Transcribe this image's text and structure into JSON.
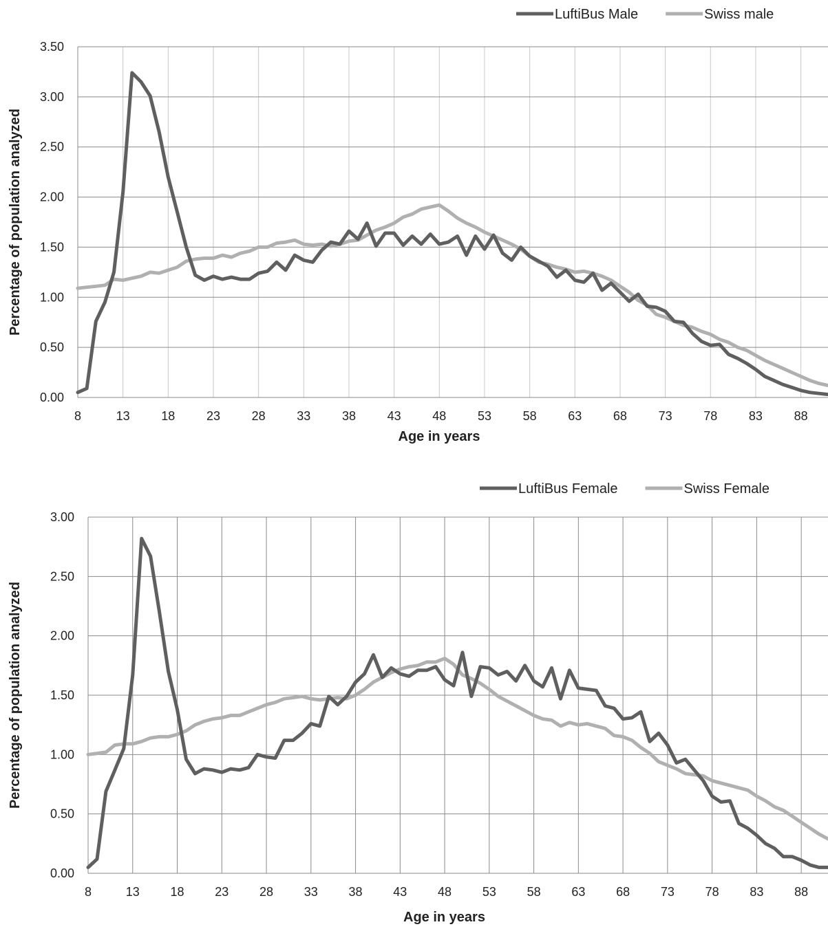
{
  "chart_data": [
    {
      "type": "line",
      "title": "",
      "xlabel": "Age in years",
      "ylabel": "Percentage of population analyzed",
      "xlim": [
        8,
        91
      ],
      "ylim": [
        0,
        3.5
      ],
      "x_ticks": [
        8,
        13,
        18,
        23,
        28,
        33,
        38,
        43,
        48,
        53,
        58,
        63,
        68,
        73,
        78,
        83,
        88
      ],
      "y_ticks": [
        "0.00",
        "0.50",
        "1.00",
        "1.50",
        "2.00",
        "2.50",
        "3.00",
        "3.50"
      ],
      "grid": true,
      "legend_position": "top-right",
      "x": [
        8,
        9,
        10,
        11,
        12,
        13,
        14,
        15,
        16,
        17,
        18,
        19,
        20,
        21,
        22,
        23,
        24,
        25,
        26,
        27,
        28,
        29,
        30,
        31,
        32,
        33,
        34,
        35,
        36,
        37,
        38,
        39,
        40,
        41,
        42,
        43,
        44,
        45,
        46,
        47,
        48,
        49,
        50,
        51,
        52,
        53,
        54,
        55,
        56,
        57,
        58,
        59,
        60,
        61,
        62,
        63,
        64,
        65,
        66,
        67,
        68,
        69,
        70,
        71,
        72,
        73,
        74,
        75,
        76,
        77,
        78,
        79,
        80,
        81,
        82,
        83,
        84,
        85,
        86,
        87,
        88,
        89,
        90,
        91
      ],
      "series": [
        {
          "name": "LuftiBus Male",
          "color": "#5f5f5f",
          "values": [
            0.05,
            0.09,
            0.76,
            0.95,
            1.25,
            2.05,
            3.24,
            3.15,
            3.01,
            2.65,
            2.2,
            1.85,
            1.5,
            1.22,
            1.17,
            1.21,
            1.18,
            1.2,
            1.18,
            1.18,
            1.24,
            1.26,
            1.35,
            1.27,
            1.42,
            1.37,
            1.35,
            1.47,
            1.55,
            1.53,
            1.66,
            1.58,
            1.74,
            1.51,
            1.64,
            1.64,
            1.52,
            1.61,
            1.53,
            1.63,
            1.53,
            1.55,
            1.61,
            1.42,
            1.61,
            1.48,
            1.62,
            1.44,
            1.37,
            1.5,
            1.41,
            1.36,
            1.31,
            1.2,
            1.27,
            1.17,
            1.15,
            1.24,
            1.07,
            1.14,
            1.05,
            0.96,
            1.03,
            0.91,
            0.9,
            0.86,
            0.76,
            0.75,
            0.64,
            0.56,
            0.52,
            0.53,
            0.43,
            0.39,
            0.34,
            0.28,
            0.21,
            0.17,
            0.13,
            0.1,
            0.07,
            0.05,
            0.04,
            0.03
          ]
        },
        {
          "name": "Swiss male",
          "color": "#b0b0b0",
          "values": [
            1.09,
            1.1,
            1.11,
            1.12,
            1.18,
            1.17,
            1.19,
            1.21,
            1.25,
            1.24,
            1.27,
            1.3,
            1.36,
            1.38,
            1.39,
            1.39,
            1.42,
            1.4,
            1.44,
            1.46,
            1.5,
            1.5,
            1.54,
            1.55,
            1.57,
            1.53,
            1.52,
            1.53,
            1.51,
            1.53,
            1.56,
            1.57,
            1.62,
            1.67,
            1.7,
            1.74,
            1.8,
            1.83,
            1.88,
            1.9,
            1.92,
            1.86,
            1.79,
            1.74,
            1.7,
            1.65,
            1.61,
            1.57,
            1.53,
            1.48,
            1.41,
            1.35,
            1.33,
            1.3,
            1.28,
            1.25,
            1.26,
            1.24,
            1.21,
            1.17,
            1.11,
            1.05,
            0.97,
            0.92,
            0.83,
            0.8,
            0.76,
            0.72,
            0.7,
            0.66,
            0.63,
            0.58,
            0.55,
            0.5,
            0.47,
            0.42,
            0.37,
            0.33,
            0.29,
            0.25,
            0.21,
            0.17,
            0.14,
            0.12
          ]
        }
      ]
    },
    {
      "type": "line",
      "title": "",
      "xlabel": "Age in years",
      "ylabel": "Percentage of population analyzed",
      "xlim": [
        8,
        91
      ],
      "ylim": [
        0,
        3.0
      ],
      "x_ticks": [
        8,
        13,
        18,
        23,
        28,
        33,
        38,
        43,
        48,
        53,
        58,
        63,
        68,
        73,
        78,
        83,
        88
      ],
      "y_ticks": [
        "0.00",
        "0.50",
        "1.00",
        "1.50",
        "2.00",
        "2.50",
        "3.00"
      ],
      "grid": true,
      "legend_position": "top-right",
      "x": [
        8,
        9,
        10,
        11,
        12,
        13,
        14,
        15,
        16,
        17,
        18,
        19,
        20,
        21,
        22,
        23,
        24,
        25,
        26,
        27,
        28,
        29,
        30,
        31,
        32,
        33,
        34,
        35,
        36,
        37,
        38,
        39,
        40,
        41,
        42,
        43,
        44,
        45,
        46,
        47,
        48,
        49,
        50,
        51,
        52,
        53,
        54,
        55,
        56,
        57,
        58,
        59,
        60,
        61,
        62,
        63,
        64,
        65,
        66,
        67,
        68,
        69,
        70,
        71,
        72,
        73,
        74,
        75,
        76,
        77,
        78,
        79,
        80,
        81,
        82,
        83,
        84,
        85,
        86,
        87,
        88,
        89,
        90,
        91
      ],
      "series": [
        {
          "name": "LuftiBus Female",
          "color": "#5f5f5f",
          "values": [
            0.05,
            0.12,
            0.69,
            0.87,
            1.05,
            1.67,
            2.82,
            2.67,
            2.2,
            1.7,
            1.38,
            0.96,
            0.84,
            0.88,
            0.87,
            0.85,
            0.88,
            0.87,
            0.89,
            1.0,
            0.98,
            0.97,
            1.12,
            1.12,
            1.18,
            1.26,
            1.24,
            1.49,
            1.42,
            1.49,
            1.61,
            1.68,
            1.84,
            1.65,
            1.73,
            1.68,
            1.66,
            1.71,
            1.71,
            1.74,
            1.63,
            1.58,
            1.86,
            1.49,
            1.74,
            1.73,
            1.67,
            1.7,
            1.62,
            1.75,
            1.62,
            1.57,
            1.73,
            1.47,
            1.71,
            1.56,
            1.55,
            1.54,
            1.41,
            1.39,
            1.3,
            1.31,
            1.36,
            1.11,
            1.18,
            1.08,
            0.93,
            0.96,
            0.87,
            0.78,
            0.65,
            0.6,
            0.61,
            0.42,
            0.38,
            0.32,
            0.25,
            0.21,
            0.14,
            0.14,
            0.11,
            0.07,
            0.05,
            0.05
          ]
        },
        {
          "name": "Swiss Female",
          "color": "#b0b0b0",
          "values": [
            1.0,
            1.01,
            1.02,
            1.08,
            1.09,
            1.09,
            1.11,
            1.14,
            1.15,
            1.15,
            1.17,
            1.2,
            1.25,
            1.28,
            1.3,
            1.31,
            1.33,
            1.33,
            1.36,
            1.39,
            1.42,
            1.44,
            1.47,
            1.48,
            1.49,
            1.47,
            1.46,
            1.47,
            1.48,
            1.47,
            1.5,
            1.55,
            1.61,
            1.65,
            1.69,
            1.72,
            1.74,
            1.75,
            1.78,
            1.78,
            1.81,
            1.76,
            1.67,
            1.64,
            1.6,
            1.55,
            1.49,
            1.45,
            1.41,
            1.37,
            1.33,
            1.3,
            1.29,
            1.24,
            1.27,
            1.25,
            1.26,
            1.24,
            1.22,
            1.16,
            1.15,
            1.12,
            1.06,
            1.01,
            0.94,
            0.91,
            0.88,
            0.84,
            0.83,
            0.82,
            0.78,
            0.76,
            0.74,
            0.72,
            0.7,
            0.65,
            0.61,
            0.56,
            0.53,
            0.48,
            0.43,
            0.38,
            0.33,
            0.29
          ]
        }
      ]
    }
  ]
}
